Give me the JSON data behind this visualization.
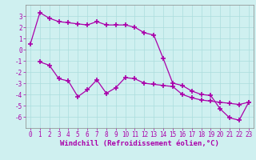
{
  "xlabel": "Windchill (Refroidissement éolien,°C)",
  "background_color": "#cff0f0",
  "line_color": "#aa00aa",
  "x_line1": [
    0,
    1,
    2,
    3,
    4,
    5,
    6,
    7,
    8,
    9,
    10,
    11,
    12,
    13,
    14,
    15,
    16,
    17,
    18,
    19,
    20,
    21,
    22,
    23
  ],
  "y_line1": [
    0.5,
    3.3,
    2.8,
    2.5,
    2.4,
    2.3,
    2.2,
    2.5,
    2.2,
    2.2,
    2.2,
    2.0,
    1.5,
    1.3,
    -0.8,
    -3.0,
    -3.2,
    -3.7,
    -4.0,
    -4.1,
    -5.3,
    -6.1,
    -6.3,
    -4.7
  ],
  "x_line2": [
    1,
    2,
    3,
    4,
    5,
    6,
    7,
    8,
    9,
    10,
    11,
    12,
    13,
    14,
    15,
    16,
    17,
    18,
    19,
    20,
    21,
    22,
    23
  ],
  "y_line2": [
    -1.1,
    -1.4,
    -2.6,
    -2.8,
    -4.2,
    -3.6,
    -2.7,
    -3.9,
    -3.4,
    -2.5,
    -2.6,
    -3.0,
    -3.1,
    -3.2,
    -3.3,
    -4.0,
    -4.3,
    -4.5,
    -4.6,
    -4.7,
    -4.8,
    -4.9,
    -4.7
  ],
  "xlim": [
    -0.5,
    23.5
  ],
  "ylim": [
    -7,
    4
  ],
  "yticks": [
    -6,
    -5,
    -4,
    -3,
    -2,
    -1,
    0,
    1,
    2,
    3
  ],
  "xticks": [
    0,
    1,
    2,
    3,
    4,
    5,
    6,
    7,
    8,
    9,
    10,
    11,
    12,
    13,
    14,
    15,
    16,
    17,
    18,
    19,
    20,
    21,
    22,
    23
  ],
  "grid_color": "#aadddd",
  "tick_fontsize": 5.5,
  "xlabel_fontsize": 6.5,
  "linewidth": 0.9,
  "markersize": 4,
  "markeredgewidth": 1.2
}
